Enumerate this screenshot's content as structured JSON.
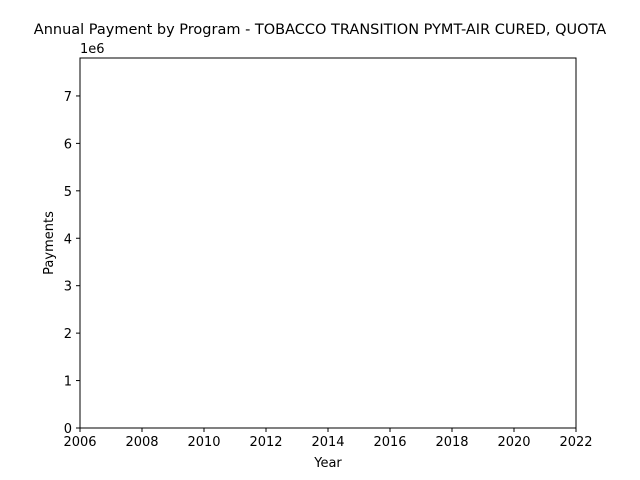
{
  "chart_data": {
    "type": "line",
    "title": "Annual Payment by Program - TOBACCO TRANSITION PYMT-AIR CURED, QUOTA",
    "xlabel": "Year",
    "ylabel": "Payments",
    "y_offset_label": "1e6",
    "xlim": [
      2006,
      2022
    ],
    "ylim": [
      0,
      7.8
    ],
    "x_ticks": [
      2006,
      2008,
      2010,
      2012,
      2014,
      2016,
      2018,
      2020,
      2022
    ],
    "y_ticks": [
      0,
      1,
      2,
      3,
      4,
      5,
      6,
      7
    ],
    "y_scale_factor": 1000000,
    "series": [],
    "grid": false,
    "legend": "none"
  }
}
